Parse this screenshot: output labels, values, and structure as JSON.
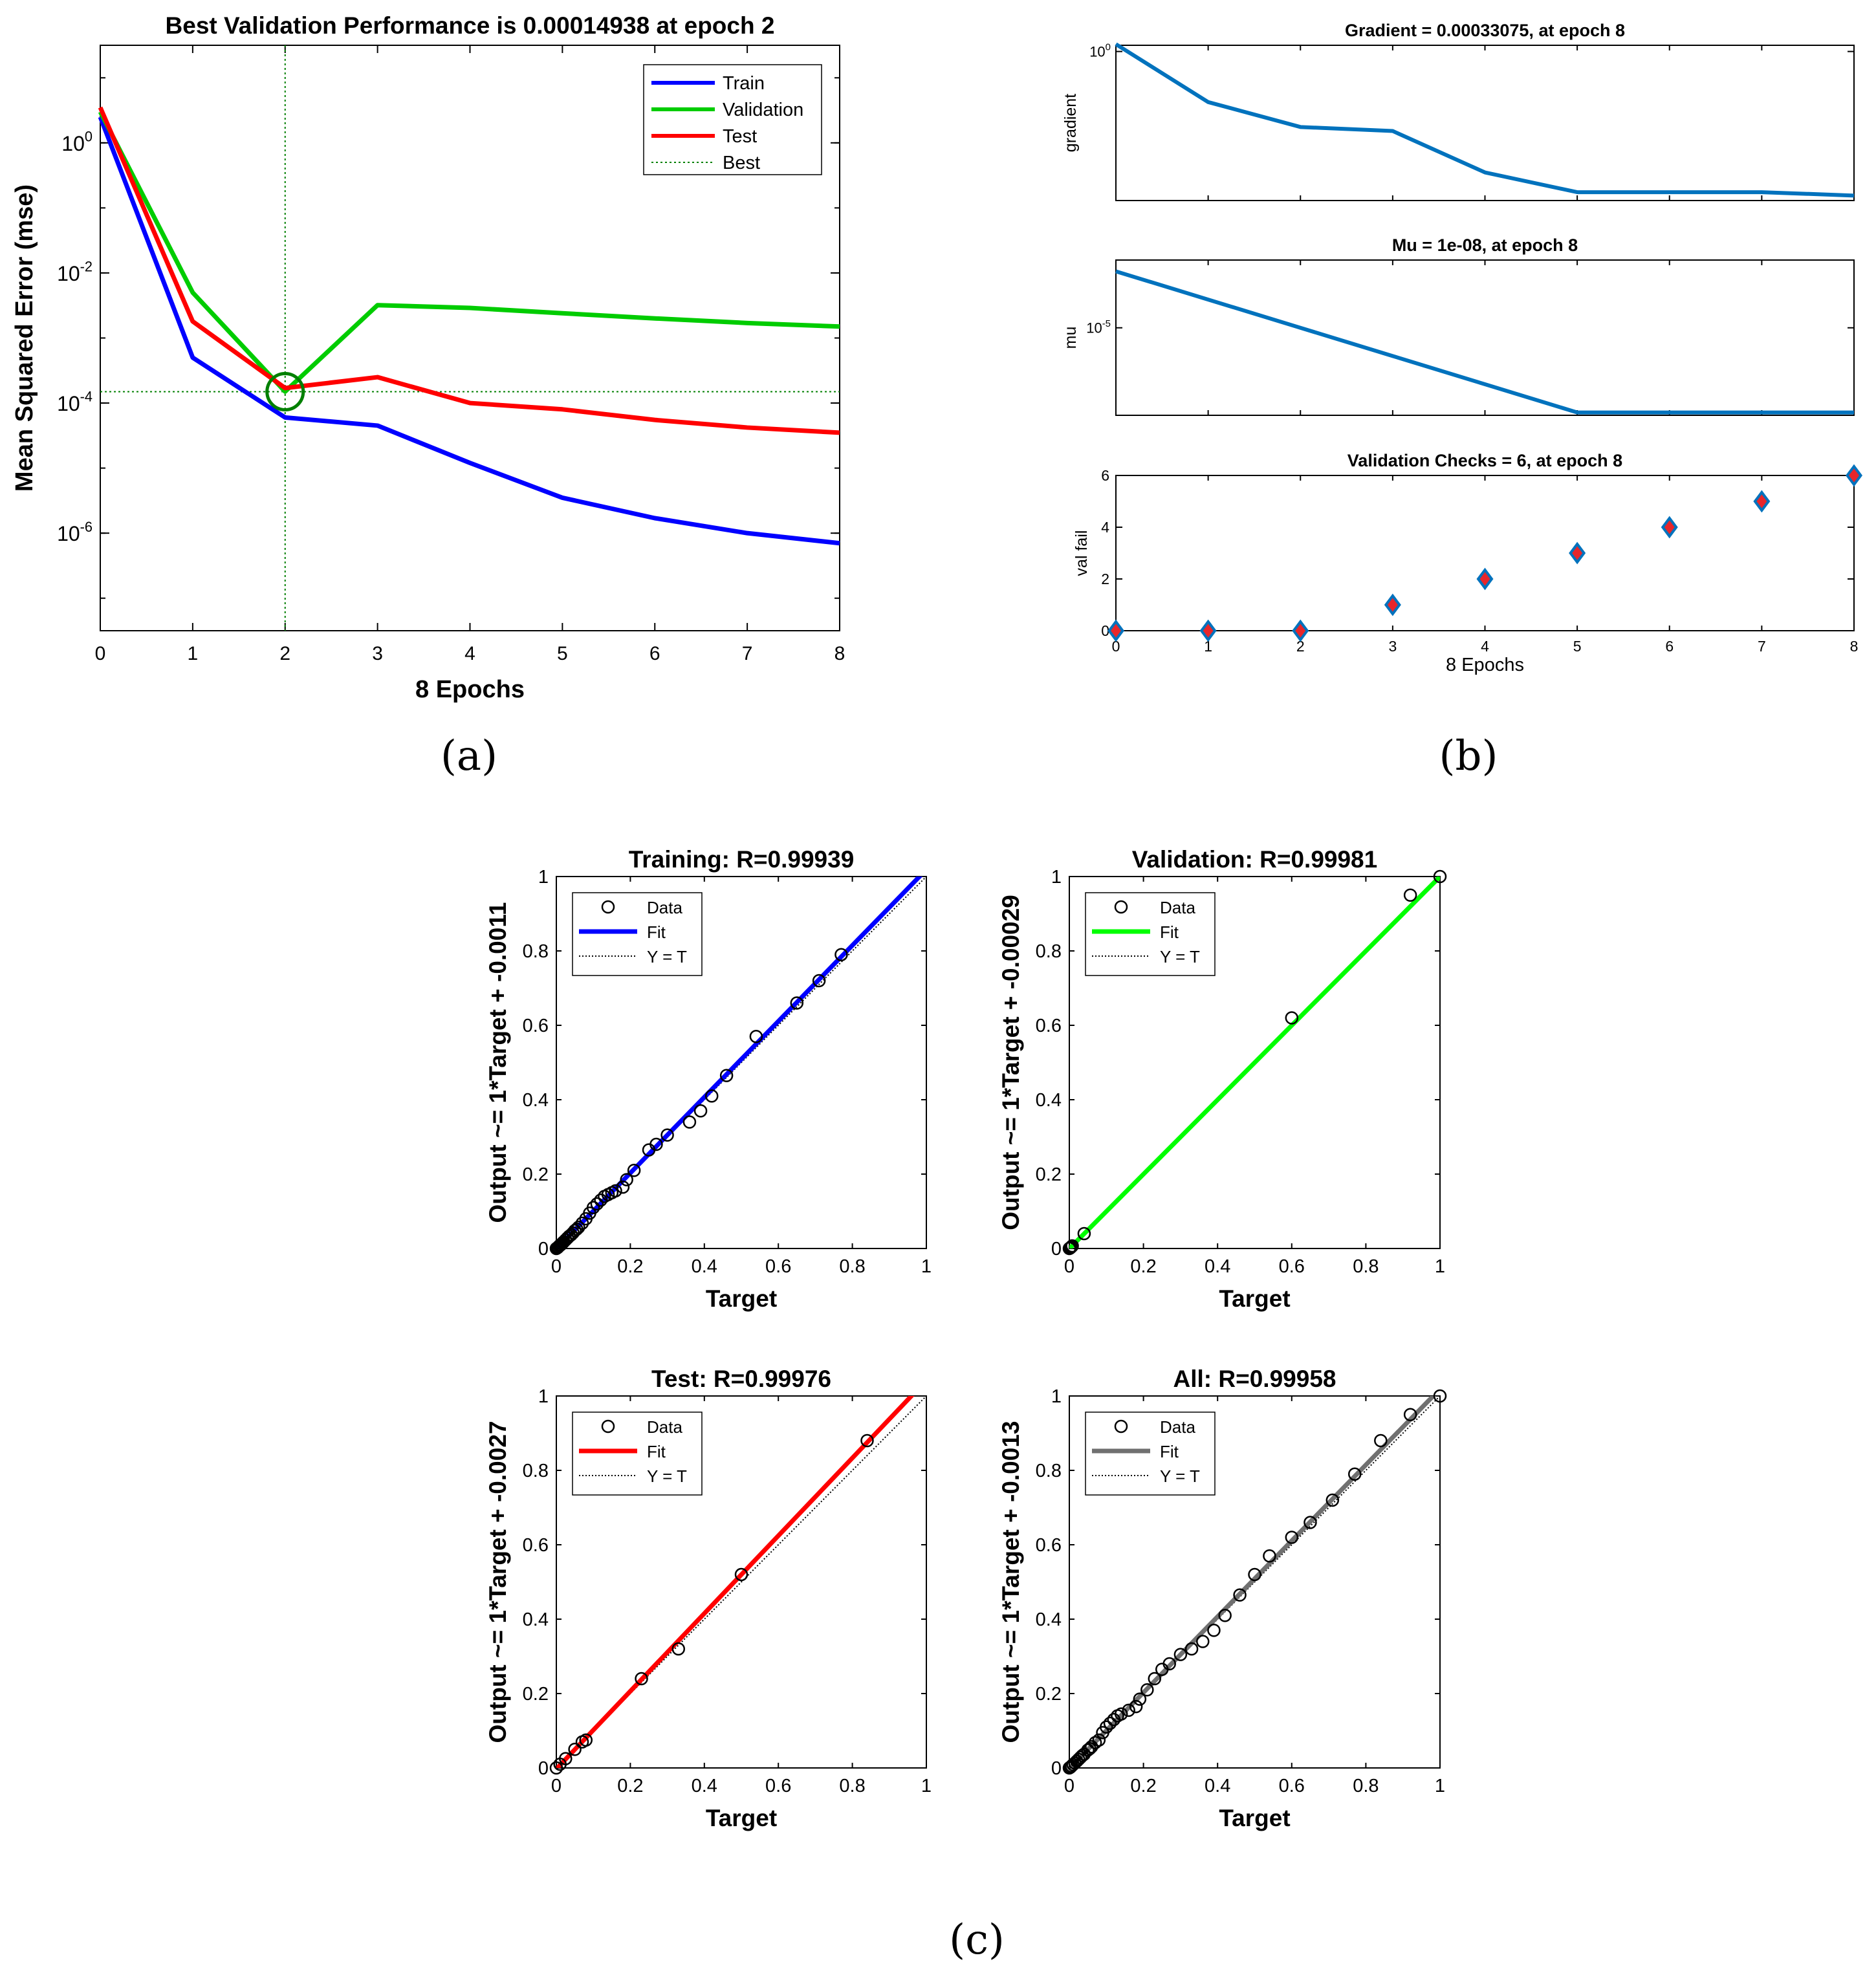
{
  "captions": {
    "a": "(a)",
    "b": "(b)",
    "c": "(c)"
  },
  "colors": {
    "train": "#0000ff",
    "validation": "#00cc00",
    "test": "#ff0000",
    "best": "#008000",
    "mat": "#0072bd",
    "diamond_fill": "#e8262b",
    "reg_train": "#0000ff",
    "reg_val": "#00ff00",
    "reg_test": "#ff0000",
    "reg_all": "#707070"
  },
  "chart_data": [
    {
      "id": "perf",
      "type": "line",
      "title": "Best Validation Performance is 0.00014938 at epoch 2",
      "xlabel": "8 Epochs",
      "ylabel": "Mean Squared Error  (mse)",
      "xlim": [
        0,
        8
      ],
      "ylim_log10": [
        -7.5,
        1.5
      ],
      "yscale": "log",
      "xticks": [
        "0",
        "1",
        "2",
        "3",
        "4",
        "5",
        "6",
        "7",
        "8"
      ],
      "yticks": [
        {
          "base": "10",
          "exp": "0",
          "log": 0
        },
        {
          "base": "10",
          "exp": "-2",
          "log": -2
        },
        {
          "base": "10",
          "exp": "-4",
          "log": -4
        },
        {
          "base": "10",
          "exp": "-6",
          "log": -6
        }
      ],
      "x": [
        0,
        1,
        2,
        3,
        4,
        5,
        6,
        7,
        8
      ],
      "series": [
        {
          "name": "Train",
          "values": [
            2.5,
            0.0005,
            6e-05,
            4.5e-05,
            1.2e-05,
            3.5e-06,
            1.7e-06,
            1e-06,
            7e-07
          ]
        },
        {
          "name": "Validation",
          "values": [
            3.0,
            0.005,
            0.00015,
            0.0032,
            0.0029,
            0.0024,
            0.002,
            0.0017,
            0.0015
          ]
        },
        {
          "name": "Test",
          "values": [
            3.5,
            0.0018,
            0.00017,
            0.00025,
            0.0001,
            8e-05,
            5.5e-05,
            4.2e-05,
            3.5e-05
          ]
        }
      ],
      "best": {
        "name": "Best",
        "epoch": 2,
        "value": 0.00014938
      },
      "legend": [
        "Train",
        "Validation",
        "Test",
        "Best"
      ],
      "legend_position": "top-right"
    },
    {
      "id": "gradient",
      "type": "line",
      "title": "Gradient = 0.00033075, at epoch 8",
      "ylabel": "gradient",
      "xlim": [
        0,
        8
      ],
      "ylim_log10": [
        -3.6,
        0.15
      ],
      "yscale": "log",
      "yticks": [
        {
          "base": "10",
          "exp": "0",
          "log": 0
        }
      ],
      "x": [
        0,
        1,
        2,
        3,
        4,
        5,
        6,
        7,
        8
      ],
      "values": [
        1.5,
        0.06,
        0.015,
        0.012,
        0.0012,
        0.0004,
        0.0004,
        0.0004,
        0.00033075
      ]
    },
    {
      "id": "mu",
      "type": "line",
      "title": "Mu = 1e-08, at epoch 8",
      "ylabel": "mu",
      "xlim": [
        0,
        8
      ],
      "ylim_log10": [
        -8.1,
        -2.6
      ],
      "yscale": "log",
      "yticks": [
        {
          "base": "10",
          "exp": "-5",
          "log": -5
        }
      ],
      "x": [
        0,
        1,
        2,
        3,
        4,
        5,
        6,
        7,
        8
      ],
      "values": [
        0.001,
        0.0001,
        1e-05,
        1e-06,
        1e-07,
        1e-08,
        1e-08,
        1e-08,
        1e-08
      ]
    },
    {
      "id": "valfail",
      "type": "scatter",
      "title": "Validation Checks = 6, at epoch 8",
      "ylabel": "val fail",
      "xlabel": "8 Epochs",
      "xlim": [
        0,
        8
      ],
      "ylim": [
        0,
        6
      ],
      "xticks": [
        "0",
        "1",
        "2",
        "3",
        "4",
        "5",
        "6",
        "7",
        "8"
      ],
      "yticks": [
        "0",
        "2",
        "4",
        "6"
      ],
      "x": [
        0,
        1,
        2,
        3,
        4,
        5,
        6,
        7,
        8
      ],
      "values": [
        0,
        0,
        0,
        1,
        2,
        3,
        4,
        5,
        6
      ]
    },
    {
      "id": "reg_train",
      "type": "scatter",
      "title": "Training: R=0.99939",
      "xlabel": "Target",
      "ylabel": "Output ~= 1*Target + -0.0011",
      "xlim": [
        0,
        1
      ],
      "ylim": [
        0,
        1
      ],
      "xticks": [
        "0",
        "0.2",
        "0.4",
        "0.6",
        "0.8",
        "1"
      ],
      "yticks": [
        "0",
        "0.2",
        "0.4",
        "0.6",
        "0.8",
        "1"
      ],
      "fit": {
        "slope": 1.02,
        "intercept": -0.0011
      },
      "legend": [
        "Data",
        "Fit",
        "Y = T"
      ],
      "points": [
        [
          0,
          0
        ],
        [
          0.003,
          0.002
        ],
        [
          0.005,
          0.004
        ],
        [
          0.008,
          0.007
        ],
        [
          0.01,
          0.009
        ],
        [
          0.012,
          0.01
        ],
        [
          0.015,
          0.013
        ],
        [
          0.018,
          0.016
        ],
        [
          0.02,
          0.018
        ],
        [
          0.025,
          0.023
        ],
        [
          0.03,
          0.028
        ],
        [
          0.035,
          0.033
        ],
        [
          0.04,
          0.037
        ],
        [
          0.045,
          0.042
        ],
        [
          0.05,
          0.048
        ],
        [
          0.055,
          0.052
        ],
        [
          0.06,
          0.057
        ],
        [
          0.07,
          0.068
        ],
        [
          0.08,
          0.08
        ],
        [
          0.09,
          0.095
        ],
        [
          0.1,
          0.11
        ],
        [
          0.11,
          0.12
        ],
        [
          0.12,
          0.13
        ],
        [
          0.13,
          0.14
        ],
        [
          0.14,
          0.145
        ],
        [
          0.15,
          0.15
        ],
        [
          0.16,
          0.155
        ],
        [
          0.18,
          0.165
        ],
        [
          0.19,
          0.185
        ],
        [
          0.21,
          0.21
        ],
        [
          0.25,
          0.265
        ],
        [
          0.27,
          0.28
        ],
        [
          0.3,
          0.305
        ],
        [
          0.36,
          0.34
        ],
        [
          0.39,
          0.37
        ],
        [
          0.42,
          0.41
        ],
        [
          0.46,
          0.465
        ],
        [
          0.54,
          0.57
        ],
        [
          0.65,
          0.66
        ],
        [
          0.71,
          0.72
        ],
        [
          0.77,
          0.79
        ]
      ]
    },
    {
      "id": "reg_val",
      "type": "scatter",
      "title": "Validation: R=0.99981",
      "xlabel": "Target",
      "ylabel": "Output ~= 1*Target + -0.00029",
      "xlim": [
        0,
        1
      ],
      "ylim": [
        0,
        1
      ],
      "xticks": [
        "0",
        "0.2",
        "0.4",
        "0.6",
        "0.8",
        "1"
      ],
      "yticks": [
        "0",
        "0.2",
        "0.4",
        "0.6",
        "0.8",
        "1"
      ],
      "fit": {
        "slope": 1.0,
        "intercept": -0.00029
      },
      "legend": [
        "Data",
        "Fit",
        "Y = T"
      ],
      "points": [
        [
          0,
          0
        ],
        [
          0.002,
          0.001
        ],
        [
          0.004,
          0.003
        ],
        [
          0.006,
          0.005
        ],
        [
          0.008,
          0.007
        ],
        [
          0.04,
          0.04
        ],
        [
          0.6,
          0.62
        ],
        [
          0.92,
          0.95
        ],
        [
          1.0,
          1.0
        ]
      ]
    },
    {
      "id": "reg_test",
      "type": "scatter",
      "title": "Test: R=0.99976",
      "xlabel": "Target",
      "ylabel": "Output ~= 1*Target + -0.0027",
      "xlim": [
        0,
        1
      ],
      "ylim": [
        0,
        1
      ],
      "xticks": [
        "0",
        "0.2",
        "0.4",
        "0.6",
        "0.8",
        "1"
      ],
      "yticks": [
        "0",
        "0.2",
        "0.4",
        "0.6",
        "0.8",
        "1"
      ],
      "fit": {
        "slope": 1.045,
        "intercept": -0.0027
      },
      "legend": [
        "Data",
        "Fit",
        "Y = T"
      ],
      "points": [
        [
          0,
          0
        ],
        [
          0.01,
          0.01
        ],
        [
          0.025,
          0.025
        ],
        [
          0.05,
          0.05
        ],
        [
          0.07,
          0.07
        ],
        [
          0.08,
          0.075
        ],
        [
          0.23,
          0.24
        ],
        [
          0.33,
          0.32
        ],
        [
          0.5,
          0.52
        ],
        [
          0.84,
          0.88
        ]
      ]
    },
    {
      "id": "reg_all",
      "type": "scatter",
      "title": "All: R=0.99958",
      "xlabel": "Target",
      "ylabel": "Output ~= 1*Target + -0.0013",
      "xlim": [
        0,
        1
      ],
      "ylim": [
        0,
        1
      ],
      "xticks": [
        "0",
        "0.2",
        "0.4",
        "0.6",
        "0.8",
        "1"
      ],
      "yticks": [
        "0",
        "0.2",
        "0.4",
        "0.6",
        "0.8",
        "1"
      ],
      "fit": {
        "slope": 1.02,
        "intercept": -0.0013
      },
      "legend": [
        "Data",
        "Fit",
        "Y = T"
      ],
      "points": [
        [
          0,
          0
        ],
        [
          0.003,
          0.002
        ],
        [
          0.006,
          0.005
        ],
        [
          0.01,
          0.009
        ],
        [
          0.015,
          0.013
        ],
        [
          0.02,
          0.018
        ],
        [
          0.025,
          0.023
        ],
        [
          0.03,
          0.028
        ],
        [
          0.035,
          0.033
        ],
        [
          0.04,
          0.037
        ],
        [
          0.05,
          0.048
        ],
        [
          0.055,
          0.052
        ],
        [
          0.06,
          0.057
        ],
        [
          0.07,
          0.068
        ],
        [
          0.08,
          0.075
        ],
        [
          0.09,
          0.095
        ],
        [
          0.1,
          0.11
        ],
        [
          0.11,
          0.12
        ],
        [
          0.12,
          0.13
        ],
        [
          0.13,
          0.14
        ],
        [
          0.14,
          0.145
        ],
        [
          0.16,
          0.155
        ],
        [
          0.18,
          0.165
        ],
        [
          0.19,
          0.185
        ],
        [
          0.21,
          0.21
        ],
        [
          0.23,
          0.24
        ],
        [
          0.25,
          0.265
        ],
        [
          0.27,
          0.28
        ],
        [
          0.3,
          0.305
        ],
        [
          0.33,
          0.32
        ],
        [
          0.36,
          0.34
        ],
        [
          0.39,
          0.37
        ],
        [
          0.42,
          0.41
        ],
        [
          0.46,
          0.465
        ],
        [
          0.5,
          0.52
        ],
        [
          0.54,
          0.57
        ],
        [
          0.6,
          0.62
        ],
        [
          0.65,
          0.66
        ],
        [
          0.71,
          0.72
        ],
        [
          0.77,
          0.79
        ],
        [
          0.84,
          0.88
        ],
        [
          0.92,
          0.95
        ],
        [
          1.0,
          1.0
        ]
      ]
    }
  ]
}
